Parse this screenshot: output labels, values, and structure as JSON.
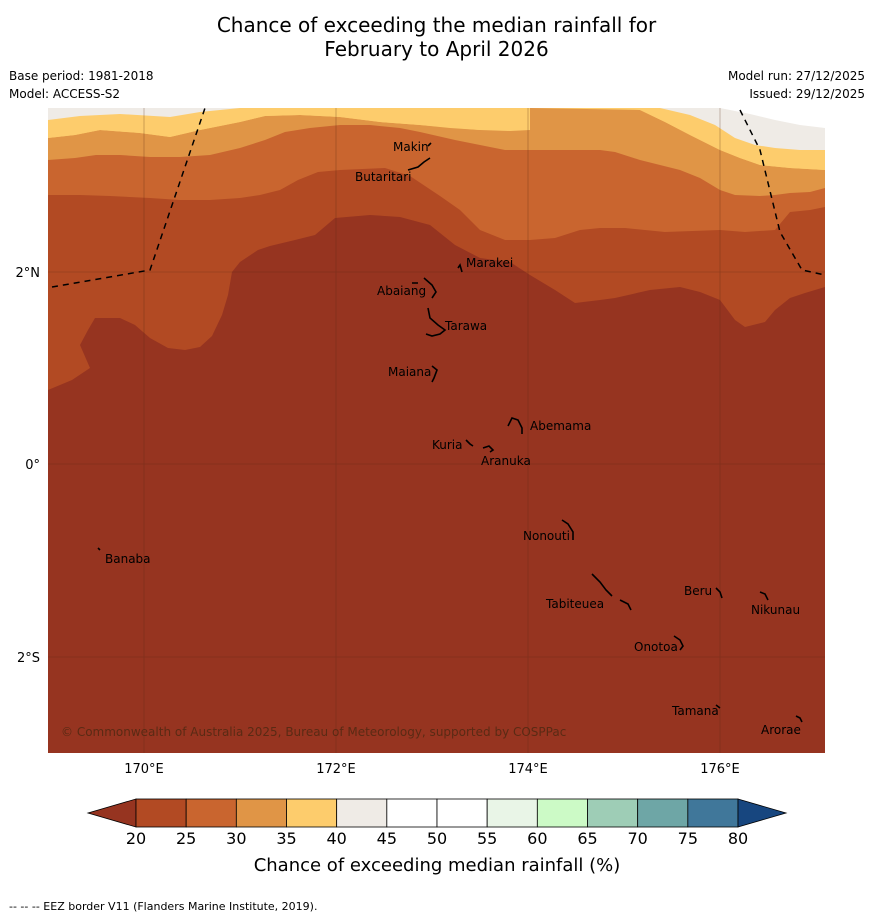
{
  "title": {
    "line1": "Chance of exceeding the median rainfall for",
    "line2": "February to April 2026"
  },
  "meta": {
    "base_period": "Base period: 1981-2018",
    "model": "Model: ACCESS-S2",
    "model_run": "Model run: 27/12/2025",
    "issued": "Issued: 29/12/2025"
  },
  "map": {
    "axis_x_ticks": [
      "170°E",
      "172°E",
      "174°E",
      "176°E"
    ],
    "axis_y_ticks": [
      "2°N",
      "0°",
      "2°S"
    ],
    "copyright": "© Commonwealth of Australia 2025, Bureau of Meteorology, supported by COSPPac",
    "places": [
      "Makin",
      "Butaritari",
      "Marakei",
      "Abaiang",
      "Tarawa",
      "Maiana",
      "Abemama",
      "Kuria",
      "Aranuka",
      "Nonouti",
      "Banaba",
      "Tabiteuea",
      "Beru",
      "Nikunau",
      "Onotoa",
      "Tamana",
      "Arorae"
    ],
    "icons": [
      "eez-border-dashed-line",
      "island-outline"
    ]
  },
  "colorbar": {
    "ticks": [
      "20",
      "25",
      "30",
      "35",
      "40",
      "45",
      "50",
      "55",
      "60",
      "65",
      "70",
      "75",
      "80"
    ],
    "colors": [
      "#b24a23",
      "#c9652f",
      "#e09546",
      "#fdcc6c",
      "#efebe6",
      "#ffffff",
      "#ffffff",
      "#e9f5e7",
      "#ccfac6",
      "#9ecdb6",
      "#6ea6a6",
      "#40779a"
    ],
    "low_color": "#963420",
    "high_color": "#17467f",
    "title": "Chance of exceeding median rainfall (%)"
  },
  "footnote": "--  --  -- EEZ border V11 (Flanders Marine Institute, 2019)."
}
